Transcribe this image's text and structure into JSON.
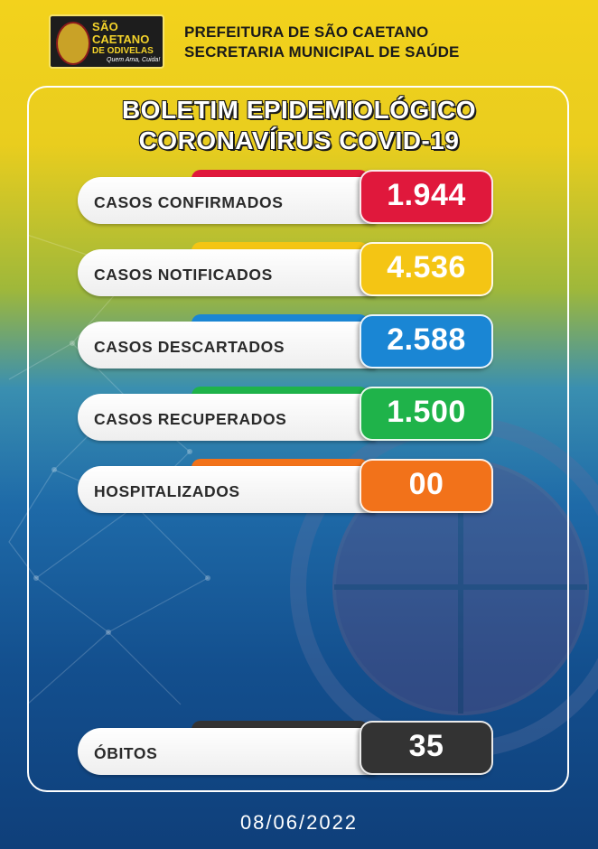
{
  "header": {
    "logo_line1": "SÃO",
    "logo_line2": "CAETANO",
    "logo_line3": "DE ODIVELAS",
    "logo_slogan": "Quem Ama, Cuida!",
    "line1": "PREFEITURA DE SÃO CAETANO",
    "line2": "SECRETARIA MUNICIPAL DE SAÚDE"
  },
  "title": {
    "line1": "BOLETIM EPIDEMIOLÓGICO",
    "line2": "CORONAVÍRUS COVID-19"
  },
  "stats": [
    {
      "label": "CASOS CONFIRMADOS",
      "value": "1.944",
      "color": "#e0183c"
    },
    {
      "label": "CASOS NOTIFICADOS",
      "value": "4.536",
      "color": "#f4c514"
    },
    {
      "label": "CASOS DESCARTADOS",
      "value": "2.588",
      "color": "#1a86d4"
    },
    {
      "label": "CASOS RECUPERADOS",
      "value": "1.500",
      "color": "#1fb34a"
    },
    {
      "label": "HOSPITALIZADOS",
      "value": "00",
      "color": "#f2721a"
    }
  ],
  "deaths": {
    "label": "ÓBITOS",
    "value": "35",
    "color": "#333333"
  },
  "date": "08/06/2022"
}
